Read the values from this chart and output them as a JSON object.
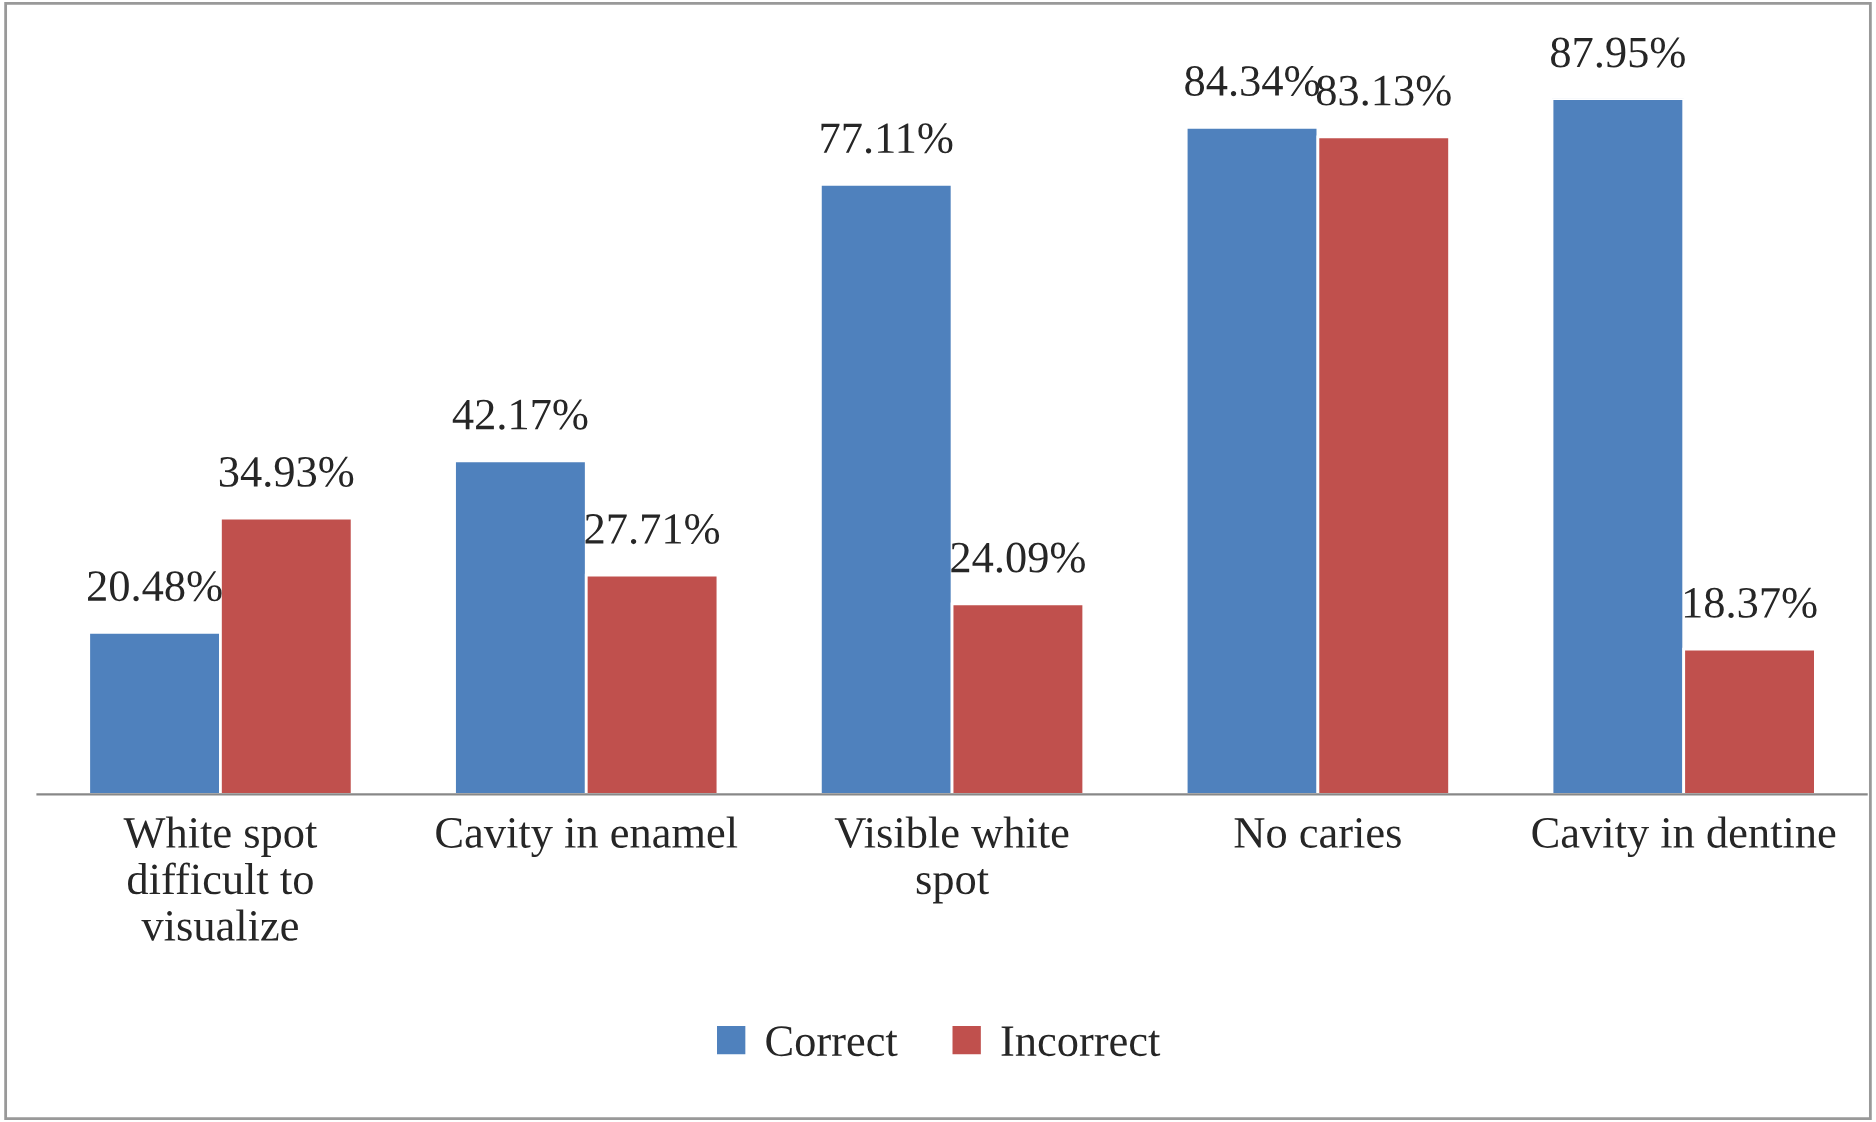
{
  "chart_data": {
    "type": "bar",
    "categories": [
      "White spot difficult to visualize",
      "Cavity in enamel",
      "Visible white spot",
      "No caries",
      "Cavity in dentine"
    ],
    "series": [
      {
        "name": "Correct",
        "color": "#4f81bd",
        "values": [
          20.48,
          42.17,
          77.11,
          84.34,
          87.95
        ],
        "value_labels": [
          "20.48%",
          "42.17%",
          "77.11%",
          "84.34%",
          "87.95%"
        ]
      },
      {
        "name": "Incorrect",
        "color": "#c0504d",
        "values": [
          34.93,
          27.71,
          24.09,
          83.13,
          18.37
        ],
        "value_labels": [
          "34.93%",
          "27.71%",
          "24.09%",
          "83.13%",
          "18.37%"
        ]
      }
    ],
    "legend": "bottom",
    "grid": false
  }
}
